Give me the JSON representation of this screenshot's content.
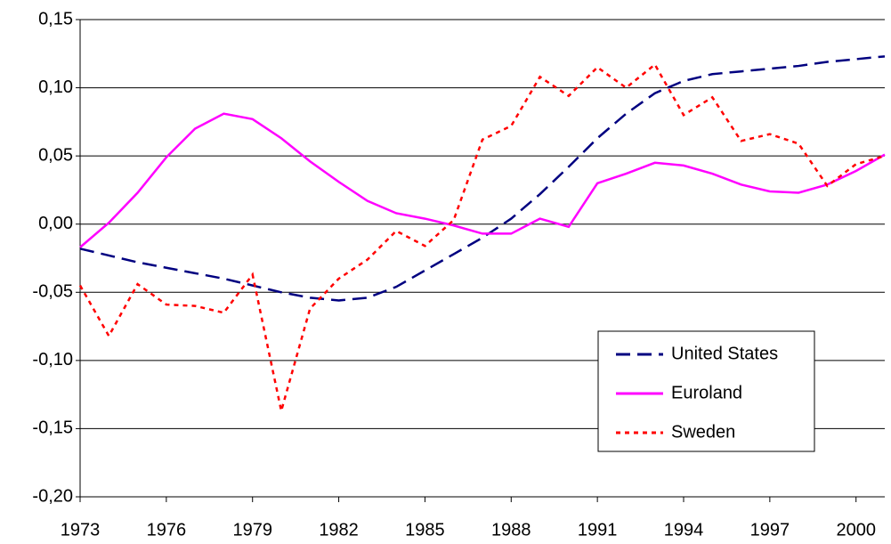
{
  "chart_data": {
    "type": "line",
    "x": [
      1973,
      1974,
      1975,
      1976,
      1977,
      1978,
      1979,
      1980,
      1981,
      1982,
      1983,
      1984,
      1985,
      1986,
      1987,
      1988,
      1989,
      1990,
      1991,
      1992,
      1993,
      1994,
      1995,
      1996,
      1997,
      1998,
      1999,
      2000,
      2001
    ],
    "series": [
      {
        "name": "United States",
        "color": "#000080",
        "style": "dashed",
        "values": [
          -0.018,
          -0.023,
          -0.028,
          -0.032,
          -0.036,
          -0.04,
          -0.045,
          -0.05,
          -0.054,
          -0.056,
          -0.054,
          -0.046,
          -0.034,
          -0.022,
          -0.01,
          0.004,
          0.022,
          0.042,
          0.063,
          0.081,
          0.096,
          0.105,
          0.11,
          0.112,
          0.114,
          0.116,
          0.119,
          0.121,
          0.123
        ]
      },
      {
        "name": "Euroland",
        "color": "#ff00ff",
        "style": "solid",
        "values": [
          -0.017,
          0.001,
          0.023,
          0.049,
          0.07,
          0.081,
          0.077,
          0.063,
          0.046,
          0.031,
          0.017,
          0.008,
          0.004,
          -0.001,
          -0.007,
          -0.007,
          0.004,
          -0.002,
          0.03,
          0.037,
          0.045,
          0.043,
          0.037,
          0.029,
          0.024,
          0.023,
          0.029,
          0.039,
          0.051
        ]
      },
      {
        "name": "Sweden",
        "color": "#ff0000",
        "style": "dotted",
        "values": [
          -0.045,
          -0.082,
          -0.044,
          -0.059,
          -0.06,
          -0.065,
          -0.037,
          -0.137,
          -0.062,
          -0.04,
          -0.026,
          -0.005,
          -0.016,
          0.003,
          0.062,
          0.072,
          0.108,
          0.094,
          0.115,
          0.1,
          0.117,
          0.08,
          0.093,
          0.061,
          0.066,
          0.059,
          0.028,
          0.044,
          0.05
        ]
      }
    ],
    "xlim": [
      1973,
      2001
    ],
    "xticks": [
      1973,
      1976,
      1979,
      1982,
      1985,
      1988,
      1991,
      1994,
      1997,
      2000
    ],
    "ylim": [
      -0.2,
      0.15
    ],
    "yticks": [
      {
        "value": -0.2,
        "label": "-0,20"
      },
      {
        "value": -0.15,
        "label": "-0,15"
      },
      {
        "value": -0.1,
        "label": "-0,10"
      },
      {
        "value": -0.05,
        "label": "-0,05"
      },
      {
        "value": 0,
        "label": "0,00"
      },
      {
        "value": 0.05,
        "label": "0,05"
      },
      {
        "value": 0.1,
        "label": "0,10"
      },
      {
        "value": 0.15,
        "label": "0,15"
      }
    ],
    "grid": true,
    "legend": "lower right"
  }
}
